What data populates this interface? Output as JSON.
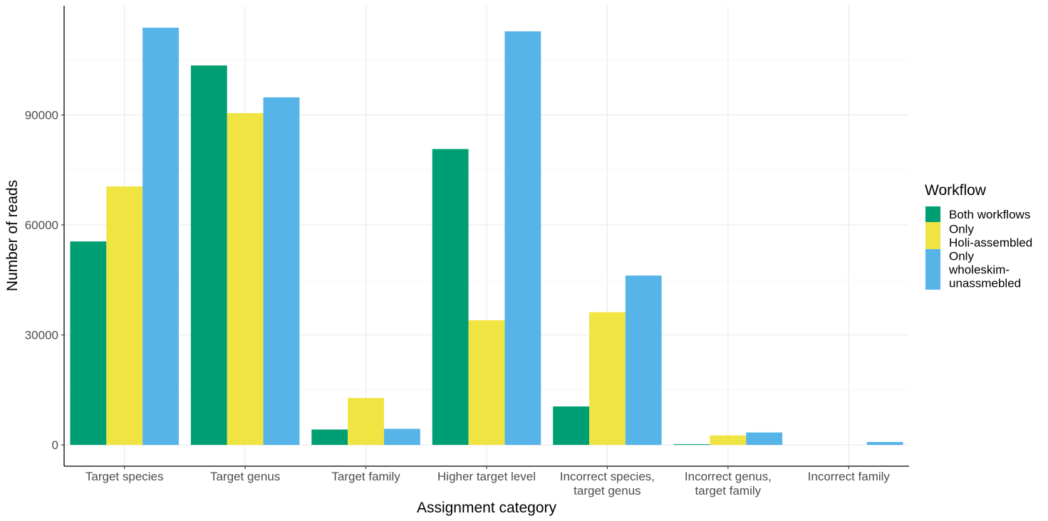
{
  "chart_data": {
    "type": "bar",
    "xlabel": "Assignment category",
    "ylabel": "Number of reads",
    "categories": [
      [
        "Target species"
      ],
      [
        "Target genus"
      ],
      [
        "Target family"
      ],
      [
        "Higher target level"
      ],
      [
        "Incorrect species,",
        "target genus"
      ],
      [
        "Incorrect genus,",
        "target family"
      ],
      [
        "Incorrect family"
      ]
    ],
    "series": [
      {
        "name": [
          "Both workflows"
        ],
        "color": "#009E73",
        "values": [
          55500,
          103500,
          4200,
          80700,
          10500,
          200,
          0
        ]
      },
      {
        "name": [
          "Only",
          "Holi-assembled"
        ],
        "color": "#F0E442",
        "values": [
          70500,
          90500,
          12800,
          34000,
          36200,
          2600,
          0
        ]
      },
      {
        "name": [
          "Only",
          "wholeskim-",
          "unassmebled"
        ],
        "color": "#56B4E9",
        "values": [
          113800,
          94800,
          4400,
          112800,
          46200,
          3400,
          800
        ]
      }
    ],
    "yticks": [
      0,
      30000,
      60000,
      90000
    ],
    "ytick_labels": [
      "0",
      "30000",
      "60000",
      "90000"
    ],
    "ylim": [
      -5800,
      119800
    ],
    "grid": true,
    "legend": {
      "title": "Workflow",
      "position": "right"
    }
  }
}
